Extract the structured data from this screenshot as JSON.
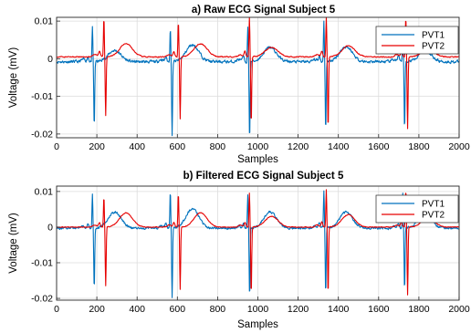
{
  "chart_data": [
    {
      "type": "line",
      "title": "a) Raw ECG Signal Subject 5",
      "xlabel": "Samples",
      "ylabel": "Voltage (mV)",
      "xlim": [
        0,
        2000
      ],
      "ylim": [
        -0.021,
        0.011
      ],
      "xticks": [
        0,
        200,
        400,
        600,
        800,
        1000,
        1200,
        1400,
        1600,
        1800,
        2000
      ],
      "yticks": [
        -0.02,
        -0.01,
        0,
        0.01
      ],
      "ytick_labels": [
        "-0.02",
        "-0.01",
        "0",
        "0.01"
      ],
      "grid": true,
      "legend_position": "top-right",
      "series": [
        {
          "name": "PVT1",
          "color": "#0072BD",
          "baseline": -0.0008,
          "noise": 0.0006,
          "beats": [
            {
              "x": 178,
              "t_amp": 0.003,
              "r_amp": 0.009,
              "s_amp": -0.0175
            },
            {
              "x": 565,
              "t_amp": 0.0045,
              "r_amp": 0.009,
              "s_amp": -0.0195
            },
            {
              "x": 950,
              "t_amp": 0.0038,
              "r_amp": 0.009,
              "s_amp": -0.0205
            },
            {
              "x": 1328,
              "t_amp": 0.004,
              "r_amp": 0.011,
              "s_amp": -0.0185
            },
            {
              "x": 1720,
              "t_amp": 0.003,
              "r_amp": 0.009,
              "s_amp": -0.018
            }
          ]
        },
        {
          "name": "PVT2",
          "color": "#E60000",
          "baseline": 0.0005,
          "noise": 0.0002,
          "beats": [
            {
              "x": 235,
              "t_amp": 0.0035,
              "r_amp": 0.0105,
              "s_amp": -0.0155
            },
            {
              "x": 605,
              "t_amp": 0.0035,
              "r_amp": 0.0095,
              "s_amp": -0.0165
            },
            {
              "x": 958,
              "t_amp": 0.0025,
              "r_amp": 0.0105,
              "s_amp": -0.018
            },
            {
              "x": 1340,
              "t_amp": 0.003,
              "r_amp": 0.0105,
              "s_amp": -0.019
            },
            {
              "x": 1735,
              "t_amp": 0.002,
              "r_amp": 0.0105,
              "s_amp": -0.019
            }
          ]
        }
      ]
    },
    {
      "type": "line",
      "title": "b) Filtered ECG Signal Subject 5",
      "xlabel": "Samples",
      "ylabel": "Voltage (mV)",
      "xlim": [
        0,
        2000
      ],
      "ylim": [
        -0.0205,
        0.0115
      ],
      "xticks": [
        0,
        200,
        400,
        600,
        800,
        1000,
        1200,
        1400,
        1600,
        1800,
        2000
      ],
      "yticks": [
        -0.02,
        -0.01,
        0,
        0.01
      ],
      "ytick_labels": [
        "-0.02",
        "-0.01",
        "0",
        "0.01"
      ],
      "grid": true,
      "legend_position": "top-right",
      "series": [
        {
          "name": "PVT1",
          "color": "#0072BD",
          "baseline": -0.0003,
          "noise": 0.0005,
          "beats": [
            {
              "x": 178,
              "t_amp": 0.0045,
              "r_amp": 0.0095,
              "s_amp": -0.017
            },
            {
              "x": 565,
              "t_amp": 0.0055,
              "r_amp": 0.0105,
              "s_amp": -0.0195
            },
            {
              "x": 950,
              "t_amp": 0.0045,
              "r_amp": 0.0095,
              "s_amp": -0.0195
            },
            {
              "x": 1328,
              "t_amp": 0.0045,
              "r_amp": 0.0105,
              "s_amp": -0.0185
            },
            {
              "x": 1720,
              "t_amp": 0.0045,
              "r_amp": 0.0095,
              "s_amp": -0.0175
            }
          ]
        },
        {
          "name": "PVT2",
          "color": "#E60000",
          "baseline": 0.0,
          "noise": 0.00015,
          "beats": [
            {
              "x": 235,
              "t_amp": 0.004,
              "r_amp": 0.0085,
              "s_amp": -0.0165
            },
            {
              "x": 605,
              "t_amp": 0.004,
              "r_amp": 0.0095,
              "s_amp": -0.0175
            },
            {
              "x": 958,
              "t_amp": 0.003,
              "r_amp": 0.0095,
              "s_amp": -0.019
            },
            {
              "x": 1340,
              "t_amp": 0.0035,
              "r_amp": 0.0105,
              "s_amp": -0.019
            },
            {
              "x": 1735,
              "t_amp": 0.0025,
              "r_amp": 0.0105,
              "s_amp": -0.019
            }
          ]
        }
      ]
    }
  ]
}
